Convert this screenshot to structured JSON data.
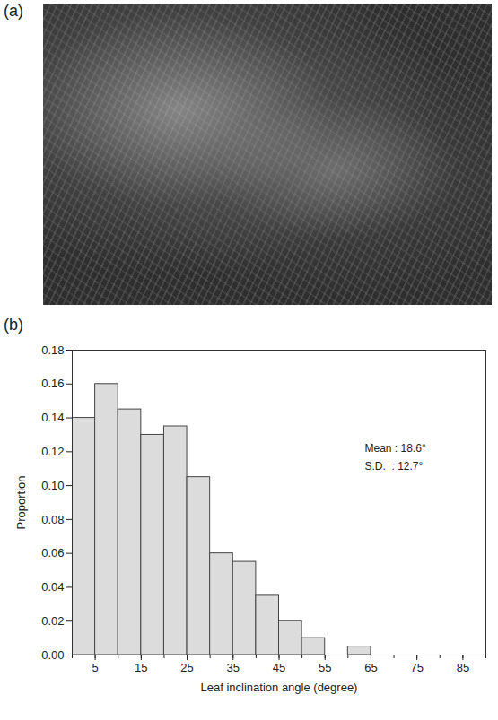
{
  "photo_panel": {
    "panel_label": "(a)"
  },
  "chart_data": {
    "type": "histogram",
    "panel_label": "(b)",
    "bins": [
      0,
      5,
      10,
      15,
      20,
      25,
      30,
      35,
      40,
      45,
      50,
      55,
      60,
      65,
      70,
      75,
      80,
      85,
      90
    ],
    "values": [
      0.14,
      0.16,
      0.145,
      0.13,
      0.135,
      0.105,
      0.06,
      0.055,
      0.035,
      0.02,
      0.01,
      0,
      0.005,
      0,
      0,
      0,
      0,
      0
    ],
    "color": "#dcdcdc",
    "xlabel": "Leaf inclination angle (degree)",
    "ylabel": "Proportion",
    "xlim": [
      0,
      90
    ],
    "xticks": [
      5,
      15,
      25,
      35,
      45,
      55,
      65,
      75,
      85
    ],
    "ylim": [
      0,
      0.18
    ],
    "yticks": [
      {
        "value": 0,
        "label": "0.00"
      },
      {
        "value": 0.02,
        "label": "0.02"
      },
      {
        "value": 0.04,
        "label": "0.04"
      },
      {
        "value": 0.06,
        "label": "0.06"
      },
      {
        "value": 0.08,
        "label": "0.08"
      },
      {
        "value": 0.1,
        "label": "0.10"
      },
      {
        "value": 0.12,
        "label": "0.12"
      },
      {
        "value": 0.14,
        "label": "0.14"
      },
      {
        "value": 0.16,
        "label": "0.16"
      },
      {
        "value": 0.18,
        "label": "0.18"
      }
    ],
    "annotations": [
      "Mean : 18.6°",
      "S.D.  : 12.7°"
    ]
  }
}
